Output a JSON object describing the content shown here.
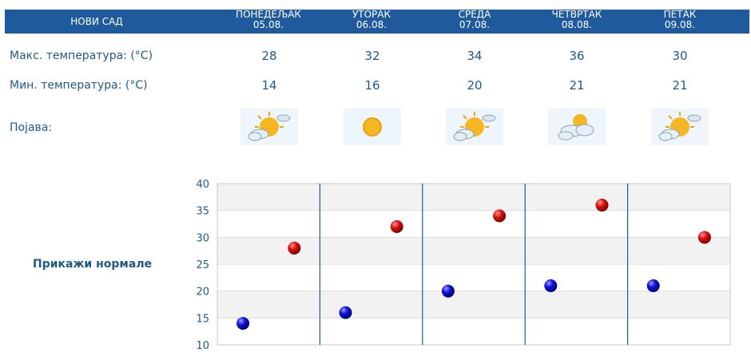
{
  "city": "НОВИ САД",
  "days": [
    {
      "name": "ПОНЕДЕЉАК",
      "date": "05.08.",
      "max": "28",
      "min": "14",
      "icon": "sun-behind-clouds-icon"
    },
    {
      "name": "УТОРАК",
      "date": "06.08.",
      "max": "32",
      "min": "16",
      "icon": "sun-icon"
    },
    {
      "name": "СРЕДА",
      "date": "07.08.",
      "max": "34",
      "min": "20",
      "icon": "sun-behind-clouds-icon"
    },
    {
      "name": "ЧЕТВРТАК",
      "date": "08.08.",
      "max": "36",
      "min": "21",
      "icon": "clouds-with-sun-icon"
    },
    {
      "name": "ПЕТАК",
      "date": "09.08.",
      "max": "30",
      "min": "21",
      "icon": "sun-behind-clouds-icon"
    }
  ],
  "labels": {
    "max_temp": "Макс. температура: (°C)",
    "min_temp": "Мин. температура: (°C)",
    "phenomenon": "Појава:",
    "show_normals": "Прикажи нормале"
  },
  "colors": {
    "header_bg": "#1e5a9c",
    "max_marker": "#cc0000",
    "min_marker": "#0000cc"
  },
  "chart_data": {
    "type": "scatter",
    "categories": [
      "05.08.",
      "06.08.",
      "07.08.",
      "08.08.",
      "09.08."
    ],
    "series": [
      {
        "values": [
          28,
          32,
          34,
          36,
          30
        ],
        "color": "#cc0000"
      },
      {
        "values": [
          14,
          16,
          20,
          21,
          21
        ],
        "color": "#0000cc"
      }
    ],
    "ylim": [
      10,
      40
    ],
    "yticks": [
      10,
      15,
      20,
      25,
      30,
      35,
      40
    ],
    "grid": true
  }
}
